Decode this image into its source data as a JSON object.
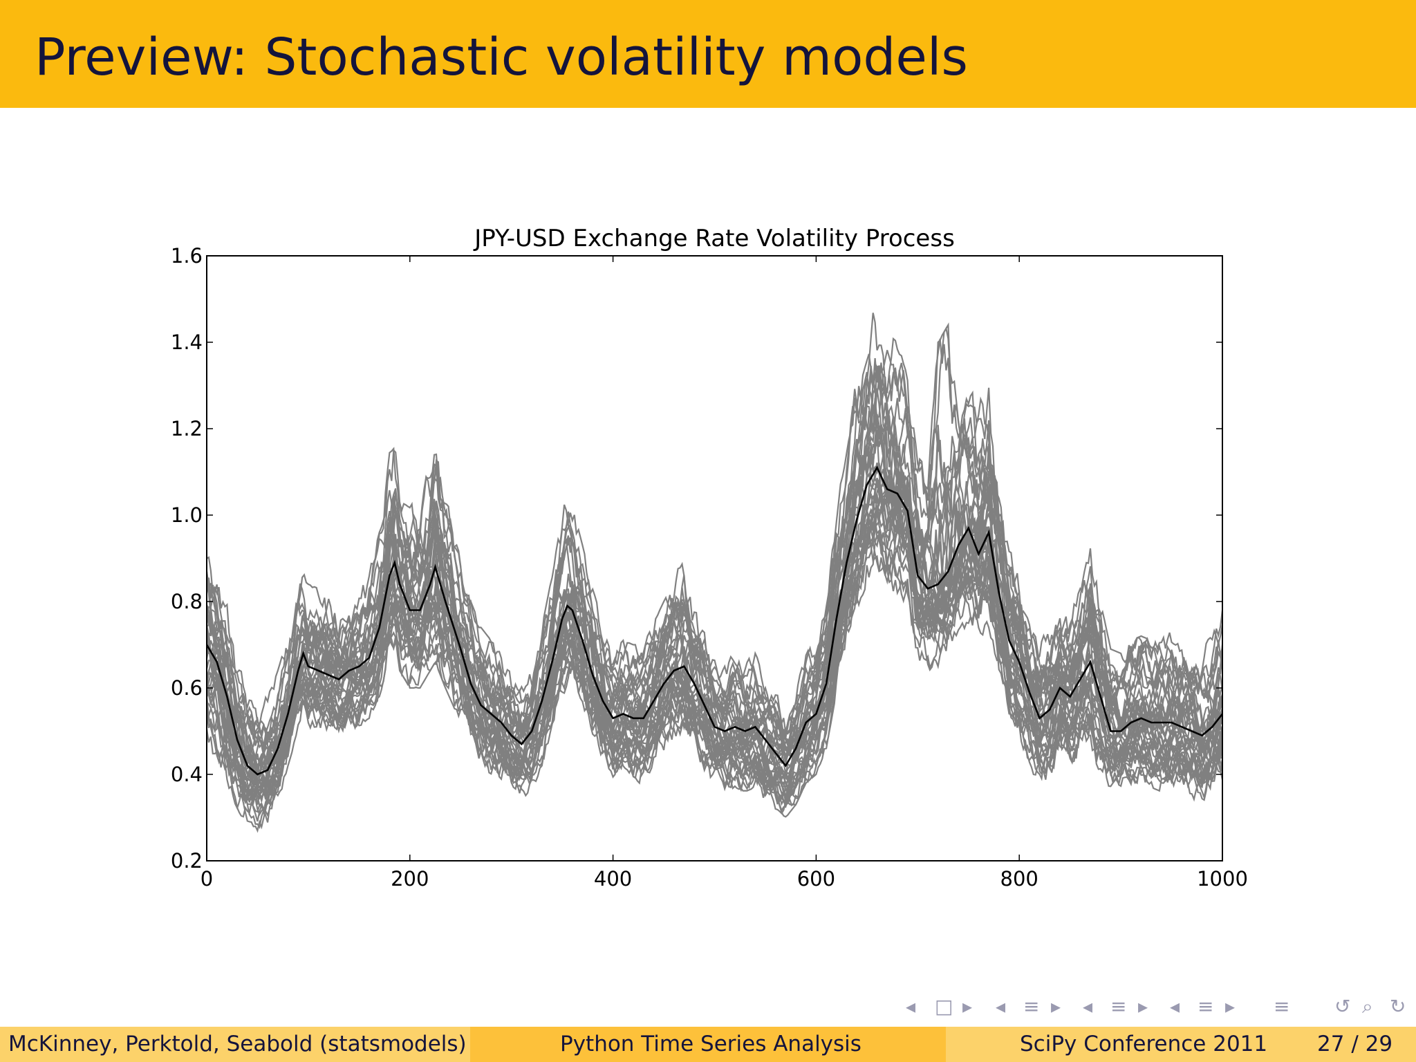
{
  "slide": {
    "title": "Preview: Stochastic volatility models"
  },
  "footer": {
    "authors": "McKinney, Perktold, Seabold  (statsmodels)",
    "title": "Python Time Series Analysis",
    "conference": "SciPy Conference 2011",
    "page_current": "27",
    "page_separator": "/",
    "page_total": "29"
  },
  "nav_icons": [
    "nav-left-icon",
    "frame-icon",
    "nav-right-icon",
    "nav-left-icon",
    "subsection-icon",
    "nav-right-icon",
    "nav-left-icon",
    "section-icon",
    "nav-right-icon",
    "nav-left-icon",
    "align-icon",
    "nav-right-icon",
    "doc-icon",
    "undo-icon",
    "search-icon",
    "redo-icon"
  ],
  "chart_data": {
    "type": "line",
    "title": "JPY-USD Exchange Rate Volatility Process",
    "xlabel": "",
    "ylabel": "",
    "xlim": [
      0,
      1000
    ],
    "ylim": [
      0.2,
      1.6
    ],
    "xticks": [
      0,
      200,
      400,
      600,
      800,
      1000
    ],
    "yticks": [
      0.2,
      0.4,
      0.6,
      0.8,
      1.0,
      1.2,
      1.4,
      1.6
    ],
    "xtick_labels": [
      "0",
      "200",
      "400",
      "600",
      "800",
      "1000"
    ],
    "ytick_labels": [
      "0.2",
      "0.4",
      "0.6",
      "0.8",
      "1.0",
      "1.2",
      "1.4",
      "1.6"
    ],
    "grid": false,
    "colors": {
      "simulations": "#808080",
      "mean": "#000000"
    },
    "mean_series": {
      "x": [
        0,
        10,
        20,
        30,
        40,
        50,
        60,
        70,
        80,
        90,
        95,
        100,
        110,
        120,
        130,
        140,
        150,
        160,
        170,
        180,
        185,
        190,
        200,
        210,
        220,
        225,
        235,
        250,
        260,
        270,
        280,
        290,
        300,
        310,
        320,
        330,
        340,
        350,
        355,
        360,
        370,
        380,
        390,
        400,
        410,
        420,
        430,
        440,
        450,
        460,
        470,
        480,
        490,
        500,
        510,
        520,
        530,
        540,
        550,
        560,
        570,
        580,
        590,
        600,
        610,
        620,
        630,
        640,
        650,
        660,
        670,
        680,
        690,
        700,
        710,
        720,
        730,
        740,
        750,
        760,
        770,
        780,
        790,
        800,
        810,
        820,
        830,
        840,
        850,
        860,
        870,
        880,
        890,
        900,
        910,
        920,
        930,
        940,
        950,
        960,
        970,
        980,
        990,
        1000
      ],
      "y": [
        0.7,
        0.66,
        0.58,
        0.48,
        0.42,
        0.4,
        0.41,
        0.46,
        0.54,
        0.64,
        0.68,
        0.65,
        0.64,
        0.63,
        0.62,
        0.64,
        0.65,
        0.67,
        0.74,
        0.86,
        0.89,
        0.84,
        0.78,
        0.78,
        0.84,
        0.88,
        0.8,
        0.69,
        0.61,
        0.56,
        0.54,
        0.52,
        0.49,
        0.47,
        0.5,
        0.57,
        0.66,
        0.76,
        0.79,
        0.78,
        0.71,
        0.63,
        0.57,
        0.53,
        0.54,
        0.53,
        0.53,
        0.57,
        0.61,
        0.64,
        0.65,
        0.61,
        0.56,
        0.51,
        0.5,
        0.51,
        0.5,
        0.51,
        0.48,
        0.45,
        0.42,
        0.46,
        0.52,
        0.54,
        0.61,
        0.76,
        0.89,
        0.99,
        1.07,
        1.11,
        1.06,
        1.05,
        1.01,
        0.86,
        0.83,
        0.84,
        0.87,
        0.93,
        0.97,
        0.91,
        0.96,
        0.82,
        0.71,
        0.66,
        0.59,
        0.53,
        0.55,
        0.6,
        0.58,
        0.62,
        0.66,
        0.58,
        0.5,
        0.5,
        0.52,
        0.53,
        0.52,
        0.52,
        0.52,
        0.51,
        0.5,
        0.49,
        0.51,
        0.54
      ]
    },
    "simulation_envelope": {
      "x": [
        0,
        10,
        20,
        30,
        40,
        50,
        60,
        70,
        80,
        90,
        95,
        100,
        110,
        120,
        130,
        140,
        150,
        160,
        170,
        180,
        185,
        190,
        200,
        210,
        220,
        225,
        235,
        250,
        260,
        270,
        280,
        290,
        300,
        310,
        320,
        330,
        340,
        350,
        355,
        360,
        370,
        380,
        390,
        400,
        410,
        420,
        430,
        440,
        450,
        460,
        470,
        480,
        490,
        500,
        510,
        520,
        530,
        540,
        550,
        560,
        570,
        580,
        590,
        600,
        610,
        620,
        630,
        640,
        650,
        660,
        670,
        680,
        690,
        700,
        710,
        720,
        730,
        740,
        750,
        760,
        770,
        780,
        790,
        800,
        810,
        820,
        830,
        840,
        850,
        860,
        870,
        880,
        890,
        900,
        910,
        920,
        930,
        940,
        950,
        960,
        970,
        980,
        990,
        1000
      ],
      "low": [
        0.46,
        0.44,
        0.38,
        0.32,
        0.28,
        0.27,
        0.28,
        0.33,
        0.42,
        0.5,
        0.53,
        0.51,
        0.5,
        0.49,
        0.48,
        0.5,
        0.51,
        0.53,
        0.58,
        0.66,
        0.68,
        0.64,
        0.6,
        0.6,
        0.64,
        0.66,
        0.6,
        0.52,
        0.45,
        0.41,
        0.39,
        0.37,
        0.35,
        0.34,
        0.36,
        0.42,
        0.5,
        0.58,
        0.6,
        0.59,
        0.53,
        0.46,
        0.41,
        0.38,
        0.39,
        0.38,
        0.38,
        0.42,
        0.45,
        0.48,
        0.49,
        0.45,
        0.41,
        0.37,
        0.36,
        0.37,
        0.36,
        0.37,
        0.34,
        0.32,
        0.3,
        0.33,
        0.38,
        0.4,
        0.46,
        0.59,
        0.7,
        0.78,
        0.84,
        0.87,
        0.83,
        0.82,
        0.79,
        0.66,
        0.64,
        0.65,
        0.68,
        0.72,
        0.75,
        0.71,
        0.74,
        0.62,
        0.53,
        0.48,
        0.42,
        0.37,
        0.38,
        0.42,
        0.4,
        0.44,
        0.46,
        0.4,
        0.36,
        0.36,
        0.37,
        0.38,
        0.37,
        0.36,
        0.36,
        0.35,
        0.34,
        0.32,
        0.34,
        0.37
      ],
      "high": [
        0.98,
        0.88,
        0.8,
        0.68,
        0.6,
        0.57,
        0.58,
        0.64,
        0.72,
        0.84,
        0.87,
        0.84,
        0.83,
        0.82,
        0.8,
        0.82,
        0.84,
        0.87,
        0.96,
        1.18,
        1.22,
        1.1,
        1.04,
        1.04,
        1.12,
        1.22,
        1.05,
        0.9,
        0.8,
        0.74,
        0.71,
        0.68,
        0.64,
        0.61,
        0.65,
        0.74,
        0.86,
        1.0,
        1.06,
        1.02,
        0.93,
        0.83,
        0.75,
        0.7,
        0.71,
        0.7,
        0.7,
        0.75,
        0.8,
        0.86,
        0.9,
        0.81,
        0.74,
        0.68,
        0.66,
        0.68,
        0.66,
        0.68,
        0.63,
        0.6,
        0.56,
        0.61,
        0.68,
        0.71,
        0.8,
        1.0,
        1.18,
        1.32,
        1.42,
        1.5,
        1.42,
        1.4,
        1.35,
        1.14,
        1.1,
        1.4,
        1.44,
        1.3,
        1.34,
        1.26,
        1.3,
        1.1,
        0.96,
        0.88,
        0.79,
        0.72,
        0.74,
        0.8,
        0.77,
        0.83,
        0.93,
        0.8,
        0.69,
        0.68,
        0.71,
        0.72,
        0.71,
        0.72,
        0.73,
        0.72,
        0.71,
        0.7,
        0.72,
        0.78
      ]
    },
    "simulation_count": 40
  }
}
